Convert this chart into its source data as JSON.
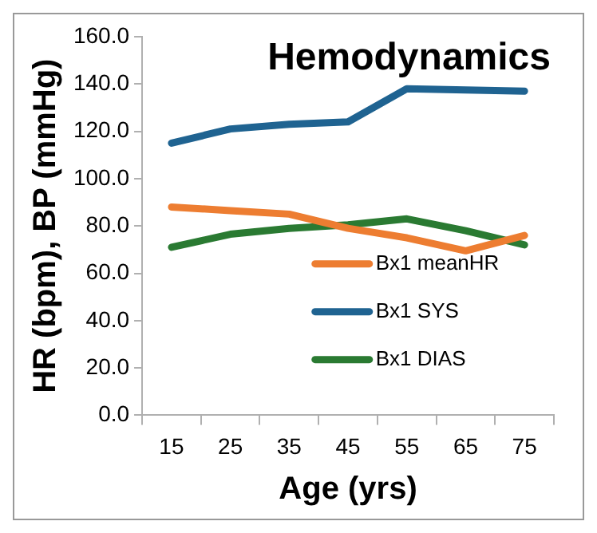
{
  "chart_data": {
    "type": "line",
    "title": "Hemodynamics",
    "xlabel": "Age (yrs)",
    "ylabel": "HR (bpm), BP (mmHg)",
    "categories": [
      "15",
      "25",
      "35",
      "45",
      "55",
      "65",
      "75"
    ],
    "series": [
      {
        "name": "Bx1 meanHR",
        "color": "#ed7d31",
        "values": [
          88,
          86.5,
          85,
          79,
          75,
          69.5,
          76
        ]
      },
      {
        "name": "Bx1 SYS",
        "color": "#1f6391",
        "values": [
          115,
          121,
          123,
          124,
          138,
          137.5,
          137
        ]
      },
      {
        "name": "Bx1 DIAS",
        "color": "#2a7a32",
        "values": [
          71,
          76.5,
          79,
          80.5,
          83,
          78,
          72
        ]
      }
    ],
    "ylim": [
      0,
      160
    ],
    "yticks": [
      {
        "value": 0,
        "label": "0.0"
      },
      {
        "value": 20,
        "label": "20.0"
      },
      {
        "value": 40,
        "label": "40.0"
      },
      {
        "value": 60,
        "label": "60.0"
      },
      {
        "value": 80,
        "label": "80.0"
      },
      {
        "value": 100,
        "label": "100.0"
      },
      {
        "value": 120,
        "label": "120.0"
      },
      {
        "value": 140,
        "label": "140.0"
      },
      {
        "value": 160,
        "label": "160.0"
      }
    ],
    "grid": false,
    "legend": "center",
    "marker": "none",
    "line_style": "solid"
  }
}
